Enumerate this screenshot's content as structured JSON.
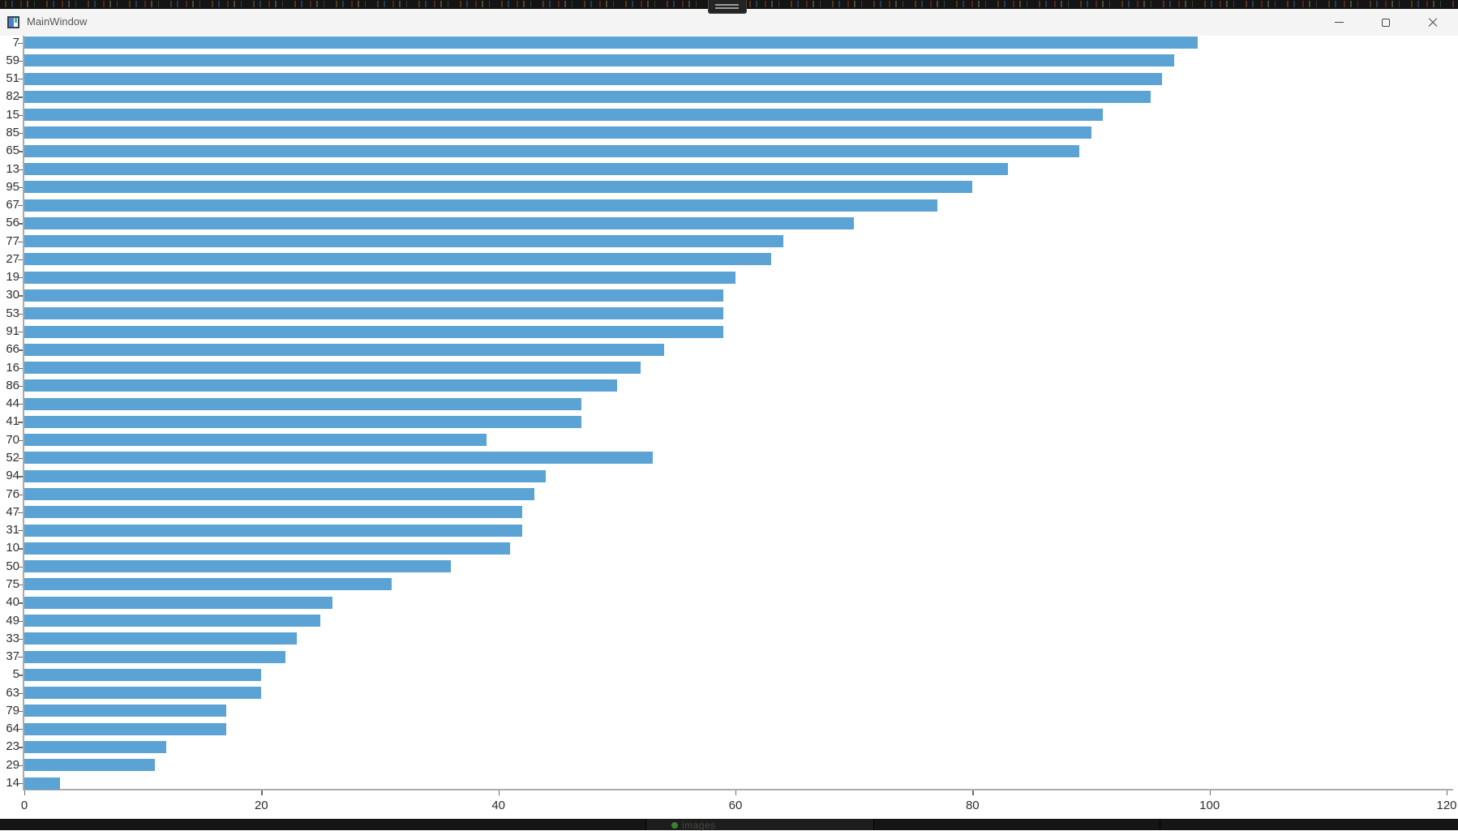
{
  "desktop": {
    "top_strip": {
      "grabber_handle": "screen-edge-grabber"
    },
    "bottom_strip": {
      "partial_item_label": "images"
    }
  },
  "window": {
    "title": "MainWindow",
    "controls": [
      {
        "name": "minimize"
      },
      {
        "name": "maximize"
      },
      {
        "name": "close"
      }
    ]
  },
  "chart_data": {
    "type": "bar",
    "orientation": "horizontal",
    "title": "",
    "xlabel": "",
    "ylabel": "",
    "categories": [
      "7",
      "59",
      "51",
      "82",
      "15",
      "85",
      "65",
      "13",
      "95",
      "67",
      "56",
      "77",
      "27",
      "19",
      "30",
      "53",
      "91",
      "66",
      "16",
      "86",
      "44",
      "41",
      "70",
      "52",
      "94",
      "76",
      "47",
      "31",
      "10",
      "50",
      "75",
      "40",
      "49",
      "33",
      "37",
      "5",
      "63",
      "79",
      "64",
      "23",
      "29",
      "14"
    ],
    "values": [
      99,
      97,
      96,
      95,
      91,
      90,
      89,
      83,
      80,
      77,
      70,
      64,
      63,
      60,
      59,
      59,
      59,
      54,
      52,
      50,
      47,
      47,
      39,
      53,
      44,
      43,
      42,
      42,
      41,
      36,
      31,
      26,
      25,
      23,
      22,
      20,
      20,
      17,
      17,
      12,
      11,
      3
    ],
    "x_ticks": [
      0,
      20,
      40,
      60,
      80,
      100,
      120
    ],
    "xlim": [
      0,
      120
    ],
    "grid": false,
    "legend": false,
    "bar_color": "#5ba3d4",
    "axis_color": "#ababab",
    "tick_color": "#6a6a6a",
    "label_color": "#2e2e2e"
  }
}
